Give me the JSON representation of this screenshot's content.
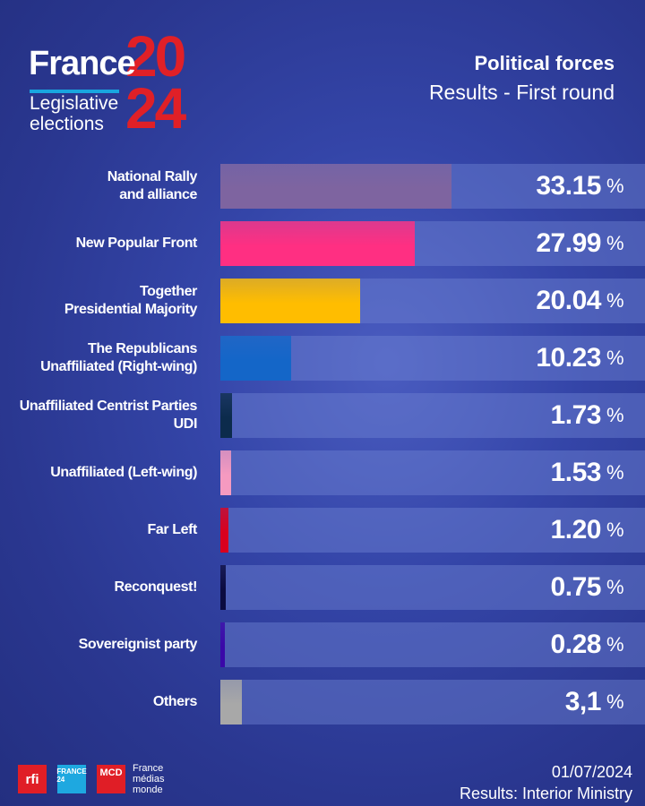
{
  "header": {
    "logo_france": "France",
    "logo_year_top": "20",
    "logo_year_bottom": "24",
    "logo_subtitle": "Legislative\nelections",
    "title": "Political forces",
    "subtitle": "Results - First round"
  },
  "chart_data": {
    "type": "bar",
    "orientation": "horizontal",
    "title": "Political forces",
    "subtitle": "Results - First round",
    "categories": [
      "National Rally\nand alliance",
      "New Popular Front",
      "Together\nPresidential Majority",
      "The Republicans\nUnaffiliated (Right-wing)",
      "Unaffiliated Centrist Parties\nUDI",
      "Unaffiliated (Left-wing)",
      "Far Left",
      "Reconquest!",
      "Sovereignist party",
      "Others"
    ],
    "values": [
      33.15,
      27.99,
      20.04,
      10.23,
      1.73,
      1.53,
      1.2,
      0.75,
      0.28,
      3.1
    ],
    "value_labels": [
      "33.15",
      "27.99",
      "20.04",
      "10.23",
      "1.73",
      "1.53",
      "1.20",
      "0.75",
      "0.28",
      "3,1"
    ],
    "unit": "%",
    "colors": [
      "#7e64a0",
      "#ff2f82",
      "#ffbd00",
      "#1466c8",
      "#0c2b4c",
      "#f59ac0",
      "#d8001e",
      "#0b0b40",
      "#3a08a8",
      "#a8a8a8"
    ],
    "xlim": [
      0,
      61
    ],
    "grid": false,
    "legend": "none"
  },
  "footer": {
    "logos": [
      "rfi",
      "FRANCE 24",
      "MCD"
    ],
    "fmm": "France\nmédias\nmonde",
    "date": "01/07/2024",
    "source": "Results: Interior Ministry"
  }
}
